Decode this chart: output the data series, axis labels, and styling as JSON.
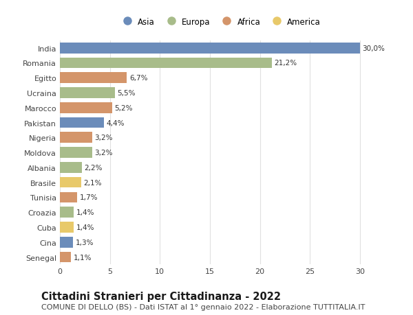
{
  "categories": [
    "India",
    "Romania",
    "Egitto",
    "Ucraina",
    "Marocco",
    "Pakistan",
    "Nigeria",
    "Moldova",
    "Albania",
    "Brasile",
    "Tunisia",
    "Croazia",
    "Cuba",
    "Cina",
    "Senegal"
  ],
  "values": [
    30.0,
    21.2,
    6.7,
    5.5,
    5.2,
    4.4,
    3.2,
    3.2,
    2.2,
    2.1,
    1.7,
    1.4,
    1.4,
    1.3,
    1.1
  ],
  "labels": [
    "30,0%",
    "21,2%",
    "6,7%",
    "5,5%",
    "5,2%",
    "4,4%",
    "3,2%",
    "3,2%",
    "2,2%",
    "2,1%",
    "1,7%",
    "1,4%",
    "1,4%",
    "1,3%",
    "1,1%"
  ],
  "continents": [
    "Asia",
    "Europa",
    "Africa",
    "Europa",
    "Africa",
    "Asia",
    "Africa",
    "Europa",
    "Europa",
    "America",
    "Africa",
    "Europa",
    "America",
    "Asia",
    "Africa"
  ],
  "continent_colors": {
    "Asia": "#6b8cba",
    "Europa": "#a8bc8a",
    "Africa": "#d4956a",
    "America": "#e8c96a"
  },
  "legend_order": [
    "Asia",
    "Europa",
    "Africa",
    "America"
  ],
  "title": "Cittadini Stranieri per Cittadinanza - 2022",
  "subtitle": "COMUNE DI DELLO (BS) - Dati ISTAT al 1° gennaio 2022 - Elaborazione TUTTITALIA.IT",
  "xlim": [
    0,
    32
  ],
  "xticks": [
    0,
    5,
    10,
    15,
    20,
    25,
    30
  ],
  "background_color": "#ffffff",
  "bar_height": 0.72,
  "title_fontsize": 10.5,
  "subtitle_fontsize": 8.0,
  "label_fontsize": 7.5,
  "tick_fontsize": 8.0,
  "legend_fontsize": 8.5
}
